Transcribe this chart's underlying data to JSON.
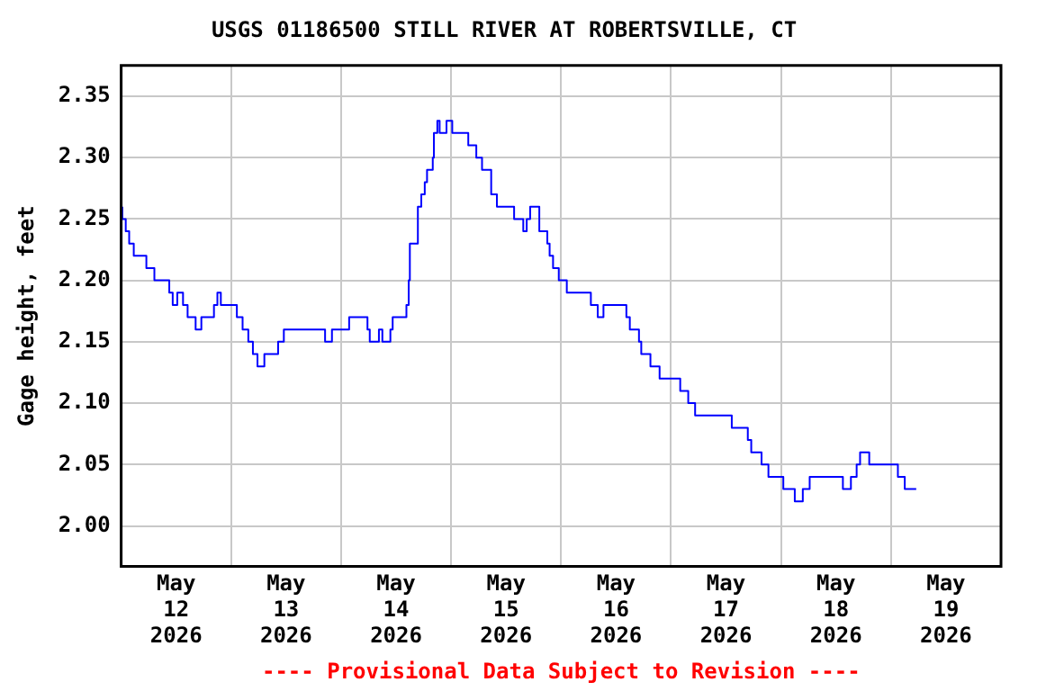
{
  "chart_data": {
    "type": "step",
    "title": "USGS 01186500 STILL RIVER AT ROBERTSVILLE, CT",
    "ylabel": "Gage height, feet",
    "annotations": [
      "---- Provisional Data Subject to Revision ----"
    ],
    "x": [
      "2026-05-12T00:15",
      "2026-05-12T01:00",
      "2026-05-12T01:45",
      "2026-05-12T02:45",
      "2026-05-12T05:30",
      "2026-05-12T07:15",
      "2026-05-12T10:30",
      "2026-05-12T11:15",
      "2026-05-12T12:15",
      "2026-05-12T13:30",
      "2026-05-12T14:30",
      "2026-05-12T16:15",
      "2026-05-12T17:30",
      "2026-05-12T20:15",
      "2026-05-12T21:00",
      "2026-05-12T21:45",
      "2026-05-13T01:15",
      "2026-05-13T02:30",
      "2026-05-13T03:45",
      "2026-05-13T04:45",
      "2026-05-13T05:45",
      "2026-05-13T07:15",
      "2026-05-13T10:15",
      "2026-05-13T11:30",
      "2026-05-13T20:30",
      "2026-05-13T22:00",
      "2026-05-14T01:45",
      "2026-05-14T05:45",
      "2026-05-14T06:15",
      "2026-05-14T08:15",
      "2026-05-14T09:00",
      "2026-05-14T10:45",
      "2026-05-14T11:15",
      "2026-05-14T14:15",
      "2026-05-14T14:45",
      "2026-05-14T15:00",
      "2026-05-14T16:45",
      "2026-05-14T17:30",
      "2026-05-14T18:15",
      "2026-05-14T18:45",
      "2026-05-14T20:00",
      "2026-05-14T20:15",
      "2026-05-14T21:00",
      "2026-05-14T21:30",
      "2026-05-14T23:00",
      "2026-05-15T00:15",
      "2026-05-15T03:45",
      "2026-05-15T05:30",
      "2026-05-15T06:45",
      "2026-05-15T08:45",
      "2026-05-15T10:00",
      "2026-05-15T13:45",
      "2026-05-15T15:45",
      "2026-05-15T16:30",
      "2026-05-15T17:15",
      "2026-05-15T19:15",
      "2026-05-15T21:00",
      "2026-05-15T21:30",
      "2026-05-15T22:15",
      "2026-05-15T23:30",
      "2026-05-16T01:15",
      "2026-05-16T06:30",
      "2026-05-16T08:00",
      "2026-05-16T09:15",
      "2026-05-16T14:15",
      "2026-05-16T15:00",
      "2026-05-16T17:00",
      "2026-05-16T17:30",
      "2026-05-16T19:30",
      "2026-05-16T21:30",
      "2026-05-17T02:00",
      "2026-05-17T03:45",
      "2026-05-17T05:15",
      "2026-05-17T13:15",
      "2026-05-17T16:45",
      "2026-05-17T17:30",
      "2026-05-17T19:45",
      "2026-05-17T21:15",
      "2026-05-18T00:30",
      "2026-05-18T03:00",
      "2026-05-18T04:45",
      "2026-05-18T06:15",
      "2026-05-18T13:30",
      "2026-05-18T15:15",
      "2026-05-18T16:30",
      "2026-05-18T17:15",
      "2026-05-18T19:15",
      "2026-05-19T01:30",
      "2026-05-19T03:00",
      "2026-05-19T04:00",
      "2026-05-19T05:30"
    ],
    "series": [
      {
        "color": "#0000ff",
        "values": [
          2.26,
          2.25,
          2.24,
          2.23,
          2.22,
          2.21,
          2.2,
          2.19,
          2.18,
          2.19,
          2.18,
          2.17,
          2.16,
          2.17,
          2.18,
          2.19,
          2.18,
          2.17,
          2.16,
          2.15,
          2.14,
          2.13,
          2.14,
          2.15,
          2.16,
          2.15,
          2.16,
          2.17,
          2.16,
          2.15,
          2.16,
          2.15,
          2.16,
          2.17,
          2.18,
          2.2,
          2.23,
          2.26,
          2.27,
          2.28,
          2.29,
          2.3,
          2.32,
          2.33,
          2.32,
          2.33,
          2.32,
          2.31,
          2.3,
          2.29,
          2.27,
          2.26,
          2.25,
          2.24,
          2.25,
          2.26,
          2.24,
          2.23,
          2.22,
          2.21,
          2.2,
          2.19,
          2.18,
          2.17,
          2.18,
          2.17,
          2.16,
          2.15,
          2.14,
          2.13,
          2.12,
          2.11,
          2.1,
          2.09,
          2.08,
          2.07,
          2.06,
          2.05,
          2.04,
          2.03,
          2.02,
          2.03,
          2.04,
          2.03,
          2.04,
          2.05,
          2.06,
          2.05,
          2.04,
          2.03,
          2.03
        ]
      }
    ],
    "xlim": [
      "2026-05-12T00:00",
      "2026-05-20T00:00"
    ],
    "xticks": [
      {
        "value": "2026-05-12T00:00",
        "label": null
      },
      {
        "value": "2026-05-12T12:00",
        "label": "May 12 2026"
      },
      {
        "value": "2026-05-13T00:00",
        "label": null
      },
      {
        "value": "2026-05-13T12:00",
        "label": "May 13 2026"
      },
      {
        "value": "2026-05-14T00:00",
        "label": null
      },
      {
        "value": "2026-05-14T12:00",
        "label": "May 14 2026"
      },
      {
        "value": "2026-05-15T00:00",
        "label": null
      },
      {
        "value": "2026-05-15T12:00",
        "label": "May 15 2026"
      },
      {
        "value": "2026-05-16T00:00",
        "label": null
      },
      {
        "value": "2026-05-16T12:00",
        "label": "May 16 2026"
      },
      {
        "value": "2026-05-17T00:00",
        "label": null
      },
      {
        "value": "2026-05-17T12:00",
        "label": "May 17 2026"
      },
      {
        "value": "2026-05-18T00:00",
        "label": null
      },
      {
        "value": "2026-05-18T12:00",
        "label": "May 18 2026"
      },
      {
        "value": "2026-05-19T00:00",
        "label": null
      },
      {
        "value": "2026-05-19T12:00",
        "label": "May 19 2026"
      },
      {
        "value": "2026-05-20T00:00",
        "label": null
      }
    ],
    "ylim": [
      1.967,
      2.375
    ],
    "yticks": [
      {
        "value": 2.0,
        "label": "2.00"
      },
      2.05,
      {
        "value": 2.1,
        "label": "2.10"
      },
      2.15,
      {
        "value": 2.2,
        "label": "2.20"
      },
      2.25,
      {
        "value": 2.3,
        "label": "2.30"
      },
      2.35
    ],
    "grid": true,
    "legend": false,
    "marker": "none",
    "line_style": "solid"
  }
}
